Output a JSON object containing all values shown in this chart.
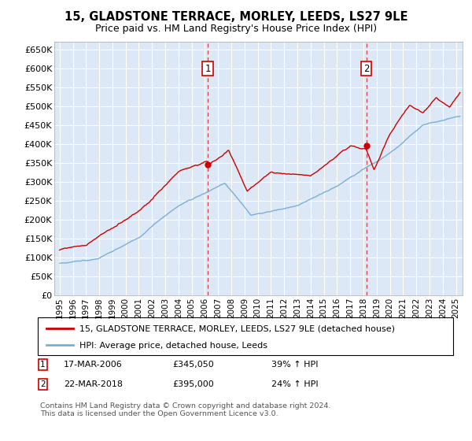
{
  "title": "15, GLADSTONE TERRACE, MORLEY, LEEDS, LS27 9LE",
  "subtitle": "Price paid vs. HM Land Registry's House Price Index (HPI)",
  "ylim": [
    0,
    670000
  ],
  "yticks": [
    0,
    50000,
    100000,
    150000,
    200000,
    250000,
    300000,
    350000,
    400000,
    450000,
    500000,
    550000,
    600000,
    650000
  ],
  "ytick_labels": [
    "£0",
    "£50K",
    "£100K",
    "£150K",
    "£200K",
    "£250K",
    "£300K",
    "£350K",
    "£400K",
    "£450K",
    "£500K",
    "£550K",
    "£600K",
    "£650K"
  ],
  "background_color": "#ffffff",
  "plot_background": "#dce8f5",
  "grid_color": "#ffffff",
  "purchase1_date": 2006.21,
  "purchase1_price": 345050,
  "purchase1_label": "1",
  "purchase2_date": 2018.22,
  "purchase2_price": 395000,
  "purchase2_label": "2",
  "red_line_color": "#cc0000",
  "blue_line_color": "#7bafd4",
  "vline_color": "#cc0000",
  "legend_label1": "15, GLADSTONE TERRACE, MORLEY, LEEDS, LS27 9LE (detached house)",
  "legend_label2": "HPI: Average price, detached house, Leeds",
  "annotation1_date": "17-MAR-2006",
  "annotation1_price": "£345,050",
  "annotation1_hpi": "39% ↑ HPI",
  "annotation2_date": "22-MAR-2018",
  "annotation2_price": "£395,000",
  "annotation2_hpi": "24% ↑ HPI",
  "footer": "Contains HM Land Registry data © Crown copyright and database right 2024.\nThis data is licensed under the Open Government Licence v3.0."
}
